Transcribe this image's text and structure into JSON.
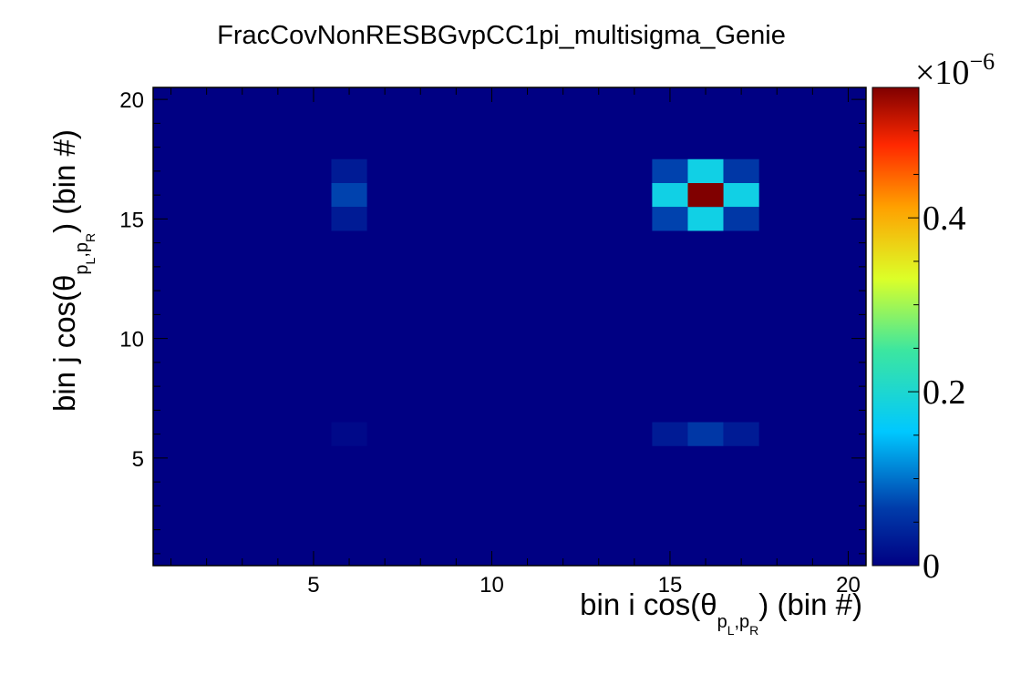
{
  "chart_data": {
    "type": "heatmap",
    "title": "FracCovNonRESBGvpCC1pi_multisigma_Genie",
    "xlabel": {
      "prefix": "bin i cos(θ",
      "sub_first": "p",
      "sub_first_index": "L",
      "sub_sep": ",",
      "sub_second": "p",
      "sub_second_index": "R",
      "suffix": ") (bin #)"
    },
    "ylabel": {
      "prefix": "bin j cos(θ",
      "sub_first": "p",
      "sub_first_index": "L",
      "sub_sep": ",",
      "sub_second": "p",
      "sub_second_index": "R",
      "suffix": ") (bin #)"
    },
    "xlim": [
      0.5,
      20.5
    ],
    "ylim": [
      0.5,
      20.5
    ],
    "x_ticks": [
      "5",
      "10",
      "15",
      "20"
    ],
    "y_ticks": [
      "5",
      "10",
      "15",
      "20"
    ],
    "colorbar": {
      "min": 0,
      "max": 0.55,
      "ticks": [
        "0",
        "0.2",
        "0.4"
      ],
      "exponent_label": "×10",
      "exponent_power": "−6",
      "palette": "kBird"
    },
    "cells": [
      {
        "x": 6,
        "y": 17,
        "z": 0.03
      },
      {
        "x": 6,
        "y": 16,
        "z": 0.07
      },
      {
        "x": 6,
        "y": 15,
        "z": 0.03
      },
      {
        "x": 6,
        "y": 6,
        "z": 0.01
      },
      {
        "x": 15,
        "y": 17,
        "z": 0.07
      },
      {
        "x": 16,
        "y": 17,
        "z": 0.18
      },
      {
        "x": 17,
        "y": 17,
        "z": 0.06
      },
      {
        "x": 15,
        "y": 16,
        "z": 0.18
      },
      {
        "x": 16,
        "y": 16,
        "z": 0.55
      },
      {
        "x": 17,
        "y": 16,
        "z": 0.18
      },
      {
        "x": 15,
        "y": 15,
        "z": 0.07
      },
      {
        "x": 16,
        "y": 15,
        "z": 0.18
      },
      {
        "x": 17,
        "y": 15,
        "z": 0.06
      },
      {
        "x": 15,
        "y": 6,
        "z": 0.03
      },
      {
        "x": 16,
        "y": 6,
        "z": 0.06
      },
      {
        "x": 17,
        "y": 6,
        "z": 0.03
      }
    ]
  }
}
